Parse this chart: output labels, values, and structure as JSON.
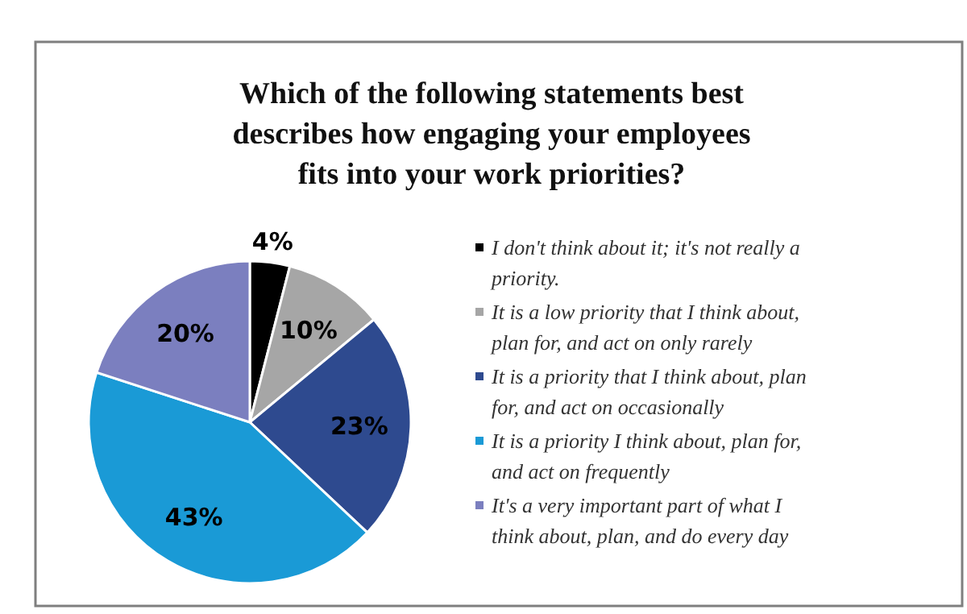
{
  "chart_data": {
    "type": "pie",
    "title": "Which of the following statements best describes how engaging your employees fits into your work priorities?",
    "categories": [
      "I don't think about it; it's not really a priority.",
      "It is a low priority that I think about, plan for, and act on only rarely",
      "It is a priority that I think about, plan for, and act on occasionally",
      "It is a priority I think about, plan for, and act on frequently",
      "It's a very important part of what I think about, plan, and do every day"
    ],
    "values": [
      4,
      10,
      23,
      43,
      20
    ],
    "colors": [
      "#000000",
      "#a6a6a6",
      "#2e4a8f",
      "#1a9ad6",
      "#7b7fbf"
    ],
    "value_labels": [
      "4%",
      "10%",
      "23%",
      "43%",
      "20%"
    ],
    "legend": "right"
  }
}
